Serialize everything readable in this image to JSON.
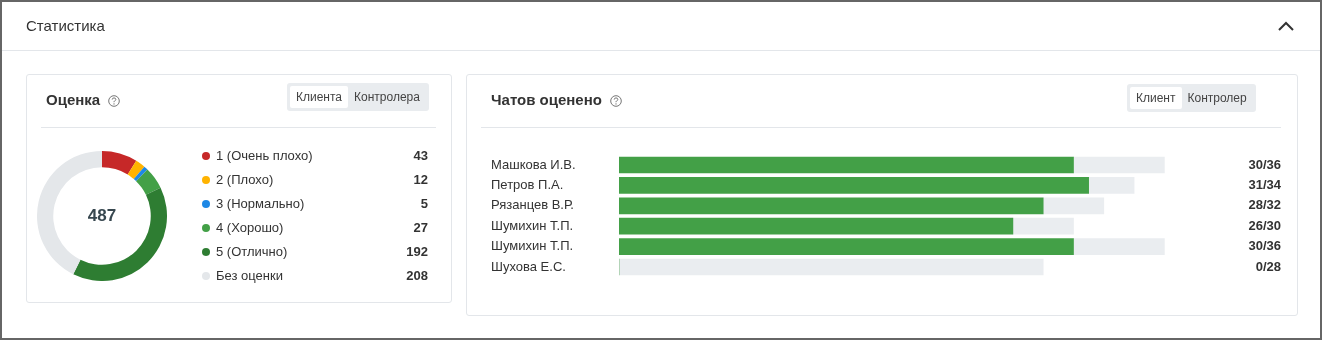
{
  "chart_data": [
    {
      "type": "other",
      "title": "Статистика"
    },
    {
      "type": "donut",
      "title": "Оценка",
      "categories": [
        "1 (Очень плохо)",
        "2 (Плохо)",
        "3 (Нормально)",
        "4 (Хорошо)",
        "5 (Отлично)",
        "Без оценки"
      ],
      "values": [
        43,
        12,
        5,
        27,
        192,
        208
      ],
      "colors": [
        "#c62828",
        "#ffb300",
        "#1e88e5",
        "#43a047",
        "#2e7d32",
        "#e4e7ea"
      ],
      "data_labels": true,
      "legend": "right",
      "annotations": [
        "487",
        "Клиента",
        "Контролера"
      ]
    },
    {
      "type": "bar",
      "title": "Чатов оценено",
      "orientation": "horizontal",
      "stacked": true,
      "tick_labels": "y",
      "categories": [
        "Машкова И.В.",
        "Петров П.А.",
        "Рязанцев В.Р.",
        "Шумихин Т.П.",
        "Шумихин Т.П.",
        "Шухова Е.С."
      ],
      "series": [
        {
          "color": "#43a047",
          "values": [
            30,
            31,
            28,
            26,
            30,
            0
          ]
        },
        {
          "color": "#eaedf0",
          "values": [
            6,
            3,
            4,
            4,
            6,
            28
          ],
          "value_labels": [
            "30/36",
            "31/34",
            "28/32",
            "26/30",
            "30/36",
            "0/28"
          ]
        }
      ],
      "legend": false,
      "annotations": [
        "Клиент",
        "Контролер"
      ]
    }
  ]
}
